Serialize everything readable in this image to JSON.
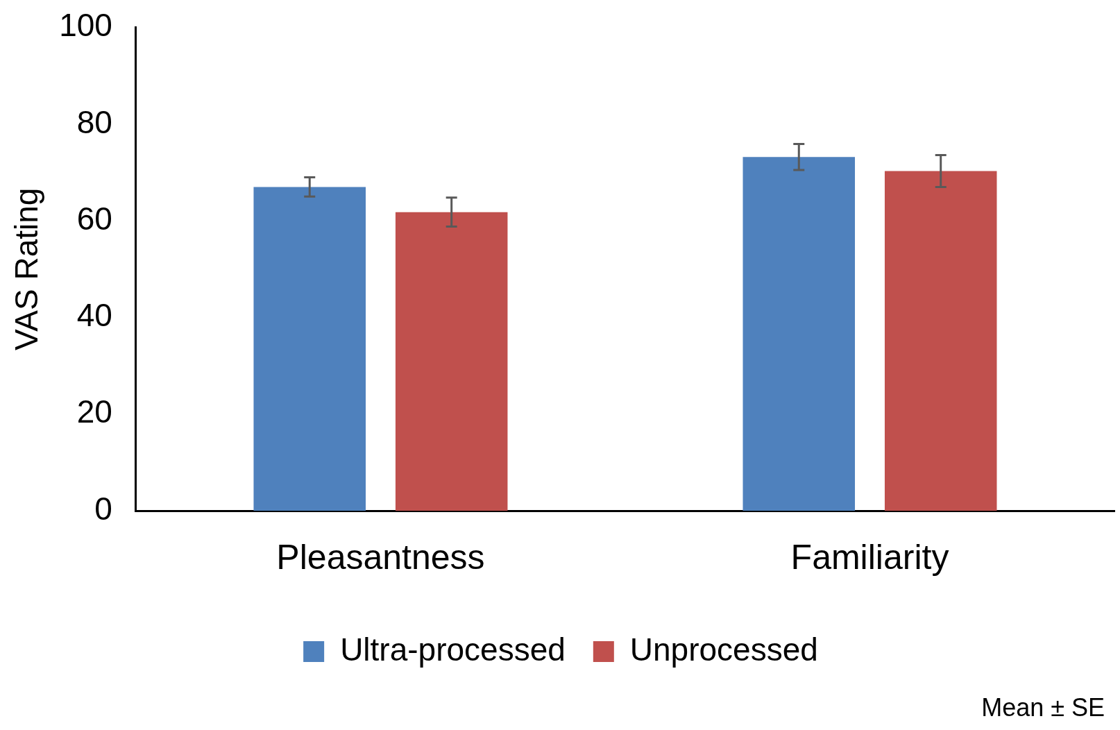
{
  "chart_data": {
    "type": "bar",
    "ylabel": "VAS Rating",
    "categories": [
      "Pleasantness",
      "Familiarity"
    ],
    "series": [
      {
        "name": "Ultra-processed",
        "color": "#4f81bd",
        "values": [
          67,
          73.2
        ],
        "errors": [
          2,
          2.7
        ]
      },
      {
        "name": "Unprocessed",
        "color": "#c0504d",
        "values": [
          61.8,
          70.3
        ],
        "errors": [
          3,
          3.3
        ]
      }
    ],
    "ylim": [
      0,
      100
    ],
    "yticks": [
      0,
      20,
      40,
      60,
      80,
      100
    ],
    "grid": false,
    "legend": "bottom",
    "annotations": [
      "Mean ± SE"
    ]
  }
}
